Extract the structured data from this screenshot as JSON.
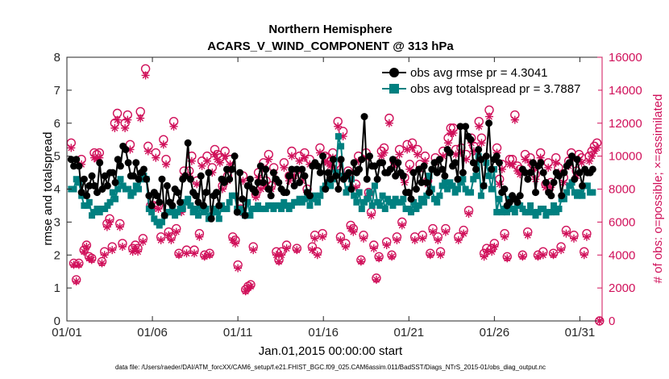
{
  "chart_data": {
    "type": "line",
    "title": "Northern Hemisphere",
    "subtitle": "ACARS_V_WIND_COMPONENT @ 313 hPa",
    "xlabel": "Jan.01,2015 00:00:00 start",
    "ylabel_left": "rmse and totalspread",
    "ylabel_right": "# of obs: o=possible; ×=assimilated",
    "x_ticks": [
      "01/01",
      "01/06",
      "01/11",
      "01/16",
      "01/21",
      "01/26",
      "01/31"
    ],
    "xlim": [
      1,
      32.3
    ],
    "ylim_left": [
      0,
      8
    ],
    "ylim_right": [
      0,
      16000
    ],
    "y_ticks_left": [
      "0",
      "1",
      "2",
      "3",
      "4",
      "5",
      "6",
      "7",
      "8"
    ],
    "y_ticks_right": [
      "0",
      "2000",
      "4000",
      "6000",
      "8000",
      "10000",
      "12000",
      "14000",
      "16000"
    ],
    "footnote": "data file: /Users/raeder/DAI/ATM_forcXX/CAM6_setup/f.e21.FHIST_BGC.f09_025.CAM6assim.011/BadSST/Diags_NTrS_2015-01/obs_diag_output.nc",
    "colors": {
      "rmse": "#000000",
      "spread": "#008080",
      "obs": "#d0105a",
      "axis": "#262626"
    },
    "grid": false,
    "legend_position": "top-right",
    "series": [
      {
        "name": "obs avg rmse pr = 4.3041",
        "marker": "circle",
        "axis": "left",
        "values": [
          4.9,
          4.7,
          4.9,
          4.7,
          3.9,
          4.3,
          3.8,
          4.1,
          4.4,
          4.1,
          3.9,
          4.8,
          4.0,
          4.4,
          4.1,
          4.5,
          4.5,
          4.2,
          4.9,
          4.7,
          5.3,
          5.2,
          4.8,
          4.4,
          4.4,
          4.8,
          4.3,
          4.5,
          4.6,
          4.3,
          3.8,
          3.5,
          3.9,
          3.8,
          3.6,
          4.3,
          3.2,
          4.1,
          3.6,
          3.5,
          4.0,
          3.9,
          3.6,
          4.3,
          4.4,
          5.4,
          4.3,
          3.9,
          3.8,
          3.6,
          4.4,
          3.5,
          3.9,
          4.5,
          3.1,
          3.8,
          3.9,
          3.5,
          4.3,
          4.2,
          4.6,
          4.3,
          4.6,
          5.0,
          3.3,
          4.5,
          3.7,
          3.2,
          4.1,
          4.3,
          4.0,
          3.9,
          4.2,
          4.7,
          4.2,
          4.6,
          4.0,
          3.8,
          4.5,
          4.3,
          4.2,
          4.0,
          3.9,
          3.9,
          4.4,
          4.6,
          4.1,
          4.6,
          4.2,
          4.6,
          4.4,
          3.9,
          3.8,
          4.7,
          4.8,
          4.7,
          4.5,
          5.0,
          4.0,
          4.5,
          4.3,
          4.9,
          4.4,
          4.0,
          4.9,
          4.3,
          4.4,
          4.5,
          4.0,
          4.8,
          4.5,
          4.6,
          4.9,
          6.2,
          4.3,
          5.0,
          4.7,
          4.7,
          4.3,
          4.8,
          4.8,
          4.5,
          4.5,
          4.6,
          4.9,
          4.4,
          4.8,
          4.5,
          4.4,
          3.9,
          3.9,
          3.7,
          4.5,
          4.0,
          4.6,
          4.2,
          4.7,
          4.2,
          3.9,
          4.6,
          4.8,
          4.5,
          4.9,
          4.6,
          4.4,
          5.2,
          5.1,
          4.7,
          4.8,
          4.3,
          5.9,
          4.5,
          5.9,
          5.6,
          5.5,
          4.8,
          4.6,
          5.2,
          4.9,
          4.1,
          5.0,
          6.0,
          4.6,
          4.9,
          5.0,
          4.8,
          3.9,
          4.0,
          3.5,
          3.6,
          3.8,
          3.7,
          3.6,
          3.8,
          4.6,
          4.5,
          4.3,
          4.5,
          4.8,
          3.9,
          4.7,
          4.8,
          4.5,
          4.2,
          3.9,
          3.8,
          4.2,
          4.5,
          4.4,
          3.8,
          4.5,
          4.7,
          4.8,
          5.0,
          4.3,
          4.9,
          4.5,
          4.1,
          4.6,
          4.5,
          4.5,
          4.6
        ]
      },
      {
        "name": "obs avg totalspread pr = 3.7887",
        "marker": "square",
        "axis": "left",
        "values": [
          4.0,
          4.0,
          4.3,
          4.2,
          3.8,
          3.5,
          3.5,
          3.6,
          3.2,
          3.3,
          3.4,
          3.3,
          3.4,
          3.4,
          3.5,
          3.6,
          3.9,
          3.7,
          4.0,
          4.3,
          4.1,
          4.0,
          4.0,
          3.8,
          3.9,
          4.1,
          4.0,
          4.3,
          4.4,
          4.3,
          3.4,
          3.3,
          3.1,
          3.0,
          2.9,
          3.0,
          3.2,
          3.3,
          3.3,
          3.4,
          3.2,
          3.3,
          3.4,
          3.4,
          3.6,
          3.7,
          3.5,
          3.3,
          3.4,
          3.2,
          3.5,
          3.3,
          3.4,
          3.1,
          3.2,
          3.4,
          3.3,
          3.1,
          3.5,
          3.4,
          3.4,
          3.6,
          3.8,
          3.8,
          3.4,
          3.4,
          3.3,
          3.2,
          3.6,
          3.2,
          3.4,
          3.4,
          3.5,
          3.4,
          3.4,
          3.4,
          3.5,
          3.5,
          3.4,
          3.5,
          3.5,
          3.4,
          3.6,
          3.5,
          3.4,
          3.5,
          3.6,
          3.6,
          3.7,
          3.6,
          3.7,
          3.9,
          3.5,
          3.7,
          3.8,
          3.6,
          3.8,
          4.0,
          4.1,
          4.2,
          4.1,
          4.3,
          4.5,
          5.6,
          5.3,
          4.4,
          3.9,
          4.0,
          4.3,
          3.8,
          3.6,
          3.9,
          3.4,
          3.6,
          3.7,
          3.9,
          3.5,
          4.1,
          3.6,
          3.5,
          3.8,
          3.4,
          3.7,
          3.6,
          3.5,
          3.7,
          3.6,
          3.6,
          3.7,
          3.4,
          3.4,
          3.3,
          3.6,
          3.4,
          3.5,
          3.7,
          3.6,
          3.8,
          4.4,
          4.0,
          3.7,
          3.6,
          3.8,
          4.1,
          4.2,
          4.0,
          4.2,
          4.1,
          3.9,
          4.0,
          4.2,
          4.3,
          4.0,
          3.9,
          3.9,
          4.3,
          4.4,
          5.0,
          3.8,
          4.1,
          4.8,
          4.4,
          4.0,
          4.6,
          3.3,
          3.7,
          3.3,
          3.4,
          3.3,
          3.7,
          3.4,
          3.3,
          3.5,
          3.5,
          3.4,
          3.3,
          3.3,
          3.5,
          3.3,
          3.2,
          3.3,
          3.4,
          3.4,
          3.2,
          3.3,
          3.3,
          3.5,
          3.3,
          3.4,
          3.7,
          3.7,
          3.9,
          4.1,
          4.2,
          3.9,
          3.8,
          3.9,
          3.8,
          4.1,
          4.1,
          3.9,
          3.9
        ]
      },
      {
        "name": "possible",
        "marker": "open-circle",
        "axis": "right",
        "values": [
          10800,
          3500,
          2500,
          3500,
          9800,
          4300,
          4600,
          3900,
          3800,
          10200,
          10100,
          10200,
          3600,
          4200,
          5900,
          6200,
          4500,
          12000,
          12600,
          5900,
          4700,
          12000,
          12500,
          10700,
          4400,
          4600,
          4400,
          12700,
          5000,
          15300,
          10600,
          7000,
          7000,
          10200,
          7000,
          5100,
          11000,
          9800,
          5400,
          5100,
          12100,
          5600,
          4100,
          6800,
          9100,
          4300,
          9100,
          10000,
          4300,
          8500,
          5300,
          9700,
          4000,
          10000,
          4100,
          9300,
          10400,
          10100,
          9900,
          8200,
          10300,
          8800,
          9800,
          5100,
          4900,
          3400,
          6800,
          8800,
          1900,
          2100,
          2200,
          4500,
          7700,
          9000,
          8300,
          9600,
          8500,
          10100,
          8200,
          9300,
          4200,
          3700,
          4200,
          9600,
          4600,
          8800,
          10300,
          9100,
          4400,
          10000,
          8800,
          10200,
          8000,
          9800,
          4500,
          5200,
          4200,
          10500,
          5300,
          10000,
          9900,
          9700,
          10200,
          9500,
          12100,
          5100,
          11500,
          4700,
          9100,
          5800,
          5600,
          8300,
          10000,
          3700,
          5200,
          10200,
          7800,
          6600,
          4600,
          2600,
          3900,
          10300,
          10500,
          4800,
          12300,
          4000,
          9700,
          5100,
          10400,
          6000,
          8700,
          10700,
          9500,
          10800,
          5100,
          10400,
          9500,
          5200,
          10000,
          8500,
          4100,
          5600,
          9900,
          5100,
          4200,
          10300,
          5600,
          11100,
          11700,
          11700,
          10400,
          5100,
          10500,
          5500,
          10100,
          6700,
          11100,
          10600,
          9900,
          12100,
          11100,
          4100,
          4400,
          12800,
          4400,
          4700,
          10500,
          8600,
          9500,
          5300,
          3900,
          9800,
          9800,
          12500,
          9400,
          9200,
          4000,
          10100,
          5400,
          9900,
          9500,
          8900,
          4000,
          10200,
          4200,
          8300,
          9600,
          8400,
          4100,
          9900,
          9300,
          4500,
          8700,
          5500,
          9700,
          10200,
          5200,
          9100,
          10100,
          9900,
          4200,
          5300,
          10000,
          10300,
          10600,
          10800,
          0
        ]
      },
      {
        "name": "assimilated",
        "marker": "asterisk",
        "axis": "right",
        "values": [
          10500,
          3400,
          2400,
          3400,
          9500,
          4200,
          4500,
          3800,
          3700,
          9900,
          9800,
          9900,
          3500,
          4000,
          5700,
          6000,
          4300,
          11700,
          12200,
          5700,
          4500,
          11700,
          12200,
          10400,
          4200,
          4400,
          4200,
          12300,
          4800,
          14900,
          10300,
          6800,
          6800,
          9900,
          6800,
          4900,
          10700,
          9500,
          5200,
          4900,
          11800,
          5400,
          4000,
          6600,
          8800,
          4100,
          8800,
          9700,
          4100,
          8300,
          5100,
          9400,
          3900,
          9700,
          4000,
          9000,
          10100,
          9800,
          9600,
          8000,
          10000,
          8500,
          9500,
          4900,
          4700,
          3200,
          6600,
          8500,
          1800,
          2000,
          2100,
          4300,
          7500,
          8700,
          8000,
          9300,
          8200,
          9800,
          8000,
          9000,
          4000,
          3600,
          4000,
          9300,
          4400,
          8500,
          10000,
          8800,
          4300,
          9700,
          8500,
          9900,
          7800,
          9500,
          4300,
          5000,
          4000,
          10200,
          5100,
          9700,
          9600,
          9400,
          9900,
          9200,
          11800,
          4900,
          11200,
          4500,
          8800,
          5600,
          5400,
          8100,
          9700,
          3600,
          5000,
          9900,
          7600,
          6400,
          4400,
          2500,
          3800,
          10000,
          10200,
          4600,
          12000,
          3900,
          9400,
          4900,
          10100,
          5800,
          8400,
          10400,
          9200,
          10500,
          4900,
          10100,
          9200,
          5000,
          9700,
          8300,
          4000,
          5400,
          9600,
          4900,
          4000,
          10000,
          5400,
          10800,
          11400,
          11400,
          10100,
          4900,
          10200,
          5300,
          9800,
          6500,
          10800,
          10300,
          9600,
          11800,
          10800,
          3900,
          4200,
          12400,
          4200,
          4500,
          10200,
          8300,
          9200,
          5100,
          3800,
          9500,
          9500,
          12200,
          9100,
          8900,
          3900,
          9800,
          5200,
          9600,
          9200,
          8600,
          3900,
          9900,
          4000,
          8100,
          9300,
          8100,
          4000,
          9600,
          9000,
          4300,
          8400,
          5300,
          9400,
          9900,
          5000,
          8800,
          9800,
          9600,
          4000,
          5100,
          9700,
          10000,
          10300,
          10500,
          0
        ]
      }
    ]
  }
}
